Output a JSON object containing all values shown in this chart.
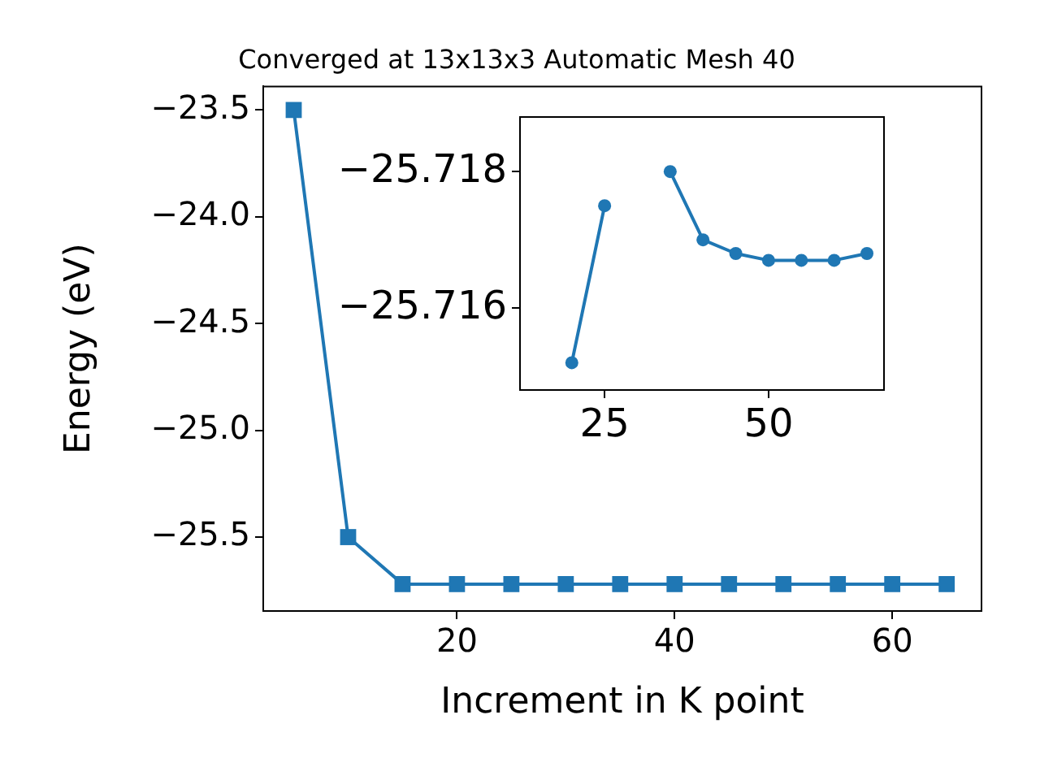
{
  "chart_data": [
    {
      "type": "line",
      "title": "Converged at 13x13x3 Automatic Mesh 40",
      "xlabel": "Increment in K point",
      "ylabel": "Energy (eV)",
      "x": [
        5,
        10,
        15,
        20,
        25,
        30,
        35,
        40,
        45,
        50,
        55,
        60,
        65
      ],
      "series": [
        {
          "color": "#1f77b4",
          "values": [
            -23.5,
            -25.5,
            -25.72,
            -25.72,
            -25.72,
            -25.72,
            -25.72,
            -25.72,
            -25.72,
            -25.72,
            -25.72,
            -25.72,
            -25.72
          ]
        }
      ],
      "xlim": [
        2.2,
        68.2
      ],
      "ylim": [
        -25.846,
        -23.39
      ],
      "xticks": [
        20,
        40,
        60
      ],
      "yticks": [
        {
          "value": -23.5,
          "label": "−23.5"
        },
        {
          "value": -24.0,
          "label": "−24.0"
        },
        {
          "value": -24.5,
          "label": "−24.5"
        },
        {
          "value": -25.0,
          "label": "−25.0"
        },
        {
          "value": -25.5,
          "label": "−25.5"
        }
      ],
      "marker": "square",
      "line_style": "solid",
      "grid": false,
      "legend": false
    },
    {
      "type": "line",
      "x": [
        20,
        25,
        30,
        35,
        40,
        45,
        50,
        55,
        60,
        65
      ],
      "series": [
        {
          "color": "#1f77b4",
          "values": [
            -25.7152,
            -25.7175,
            null,
            -25.718,
            -25.717,
            -25.7168,
            -25.7167,
            -25.7167,
            -25.7167,
            -25.7168
          ]
        }
      ],
      "xlim": [
        12.1,
        67.6
      ],
      "ylim": [
        -25.7148,
        -25.7188
      ],
      "xticks": [
        25,
        50
      ],
      "yticks": [
        {
          "value": -25.718,
          "label": "−25.718"
        },
        {
          "value": -25.716,
          "label": "−25.716"
        }
      ],
      "marker": "circle",
      "line_style": "solid",
      "grid": false,
      "legend": false
    }
  ]
}
